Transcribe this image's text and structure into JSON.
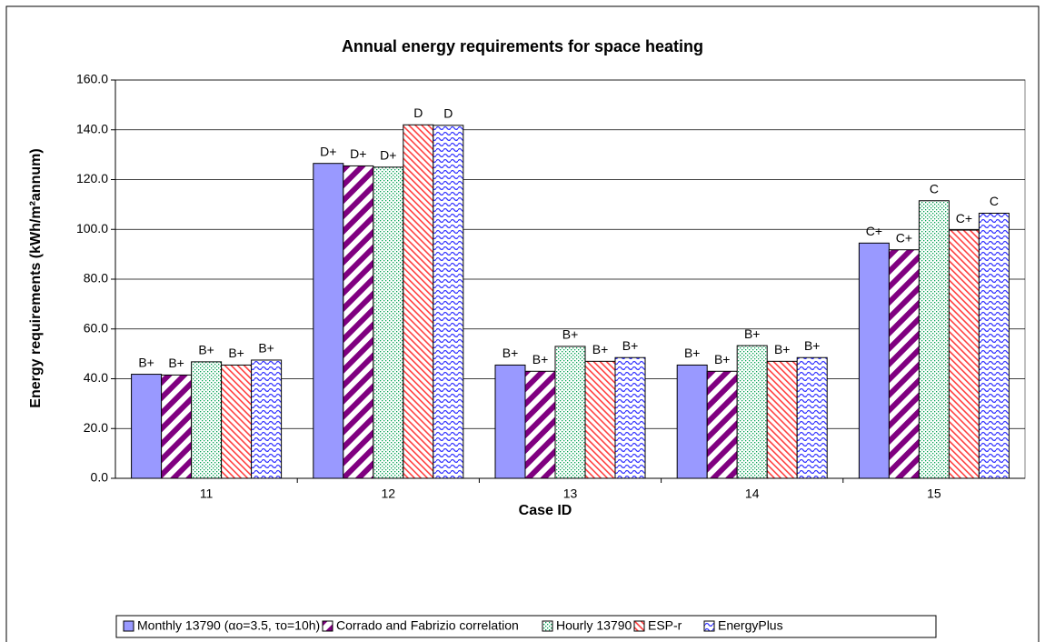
{
  "chart_data": {
    "type": "bar",
    "title": "Annual energy requirements for space heating",
    "x_label": "Case ID",
    "y_label": "Energy requirements (kWh/m²annum)",
    "categories": [
      "11",
      "12",
      "13",
      "14",
      "15"
    ],
    "series": [
      {
        "name": "Monthly 13790 (αo=3.5, τo=10h)",
        "color": "#9999ff",
        "pattern": "solid",
        "values": [
          41.8,
          126.5,
          45.5,
          45.5,
          94.5
        ],
        "value_labels": [
          "B+",
          "D+",
          "B+",
          "B+",
          "C+"
        ]
      },
      {
        "name": "Corrado and Fabrizio correlation",
        "color": "#800080",
        "pattern": "wide-stripes",
        "values": [
          41.5,
          125.5,
          43.0,
          43.0,
          91.8
        ],
        "value_labels": [
          "B+",
          "D+",
          "B+",
          "B+",
          "C+"
        ]
      },
      {
        "name": "Hourly 13790",
        "color": "#00a050",
        "pattern": "dots",
        "values": [
          46.8,
          125.0,
          53.0,
          53.3,
          111.5
        ],
        "value_labels": [
          "B+",
          "D+",
          "B+",
          "B+",
          "C"
        ]
      },
      {
        "name": "ESP-r",
        "color": "#ff4040",
        "pattern": "thin-stripes",
        "values": [
          45.5,
          142.0,
          47.0,
          47.0,
          99.7
        ],
        "value_labels": [
          "B+",
          "D",
          "B+",
          "B+",
          "C+"
        ]
      },
      {
        "name": "EnergyPlus",
        "color": "#3333ff",
        "pattern": "waves",
        "values": [
          47.5,
          141.8,
          48.5,
          48.5,
          106.5
        ],
        "value_labels": [
          "B+",
          "D",
          "B+",
          "B+",
          "C"
        ]
      }
    ],
    "ylim": [
      0,
      160
    ],
    "yticks": [
      {
        "value": 0,
        "label": "0.0"
      },
      {
        "value": 20,
        "label": "20.0"
      },
      {
        "value": 40,
        "label": "40.0"
      },
      {
        "value": 60,
        "label": "60.0"
      },
      {
        "value": 80,
        "label": "80.0"
      },
      {
        "value": 100,
        "label": "100.0"
      },
      {
        "value": 120,
        "label": "120.0"
      },
      {
        "value": 140,
        "label": "140.0"
      },
      {
        "value": 160,
        "label": "160.0"
      }
    ],
    "grid": true,
    "legend": "bottom"
  }
}
